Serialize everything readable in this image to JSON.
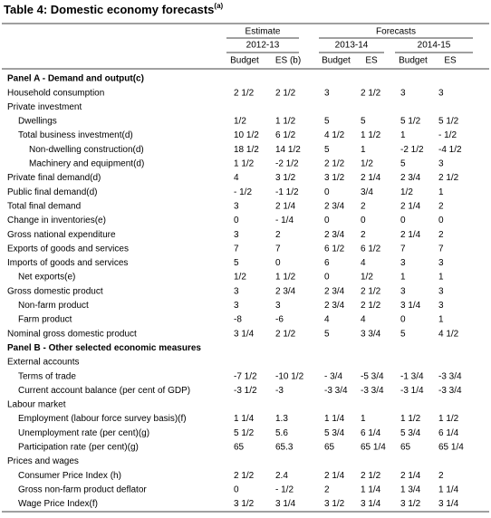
{
  "header": {
    "title": "Table 4: Domestic economy forecasts",
    "title_note": "(a)"
  },
  "column_groups": [
    "Estimate",
    "Forecasts"
  ],
  "years": [
    "2012-13",
    "2013-14",
    "2014-15"
  ],
  "columns": [
    "Budget",
    "ES (b)",
    "Budget",
    "ES",
    "Budget",
    "ES"
  ],
  "panels": [
    {
      "title": "Panel A - Demand and output(c)",
      "rows": [
        {
          "label": "Household consumption",
          "values": [
            "2 1/2",
            "2 1/2",
            "3",
            "2 1/2",
            "3",
            "3"
          ]
        },
        {
          "label": "Private investment",
          "children": [
            {
              "label": "Dwellings",
              "values": [
                "1/2",
                "1 1/2",
                "5",
                "5",
                "5 1/2",
                "5 1/2"
              ]
            },
            {
              "label": "Total business investment(d)",
              "values": [
                "10 1/2",
                "6 1/2",
                "4 1/2",
                "1 1/2",
                "1",
                "- 1/2"
              ],
              "children": [
                {
                  "label": "Non-dwelling construction(d)",
                  "values": [
                    "18 1/2",
                    "14 1/2",
                    "5",
                    "1",
                    "-2 1/2",
                    "-4 1/2"
                  ]
                },
                {
                  "label": "Machinery and equipment(d)",
                  "values": [
                    "1 1/2",
                    "-2 1/2",
                    "2 1/2",
                    "1/2",
                    "5",
                    "3"
                  ]
                }
              ]
            }
          ]
        },
        {
          "label": "Private final demand(d)",
          "values": [
            "4",
            "3 1/2",
            "3 1/2",
            "2 1/4",
            "2 3/4",
            "2 1/2"
          ]
        },
        {
          "label": "Public final demand(d)",
          "values": [
            "- 1/2",
            "-1 1/2",
            "0",
            "3/4",
            "1/2",
            "1"
          ]
        },
        {
          "label": "Total final demand",
          "values": [
            "3",
            "2 1/4",
            "2 3/4",
            "2",
            "2 1/4",
            "2"
          ]
        },
        {
          "label": "Change in inventories(e)",
          "values": [
            "0",
            "- 1/4",
            "0",
            "0",
            "0",
            "0"
          ]
        },
        {
          "label": "Gross national expenditure",
          "values": [
            "3",
            "2",
            "2 3/4",
            "2",
            "2 1/4",
            "2"
          ]
        },
        {
          "label": "Exports of goods and services",
          "values": [
            "7",
            "7",
            "6 1/2",
            "6 1/2",
            "7",
            "7"
          ]
        },
        {
          "label": "Imports of goods and services",
          "values": [
            "5",
            "0",
            "6",
            "4",
            "3",
            "3"
          ],
          "children": [
            {
              "label": "Net exports(e)",
              "values": [
                "1/2",
                "1 1/2",
                "0",
                "1/2",
                "1",
                "1"
              ]
            }
          ]
        },
        {
          "label": "Gross domestic product",
          "values": [
            "3",
            "2 3/4",
            "2 3/4",
            "2 1/2",
            "3",
            "3"
          ],
          "children": [
            {
              "label": "Non-farm product",
              "values": [
                "3",
                "3",
                "2 3/4",
                "2 1/2",
                "3 1/4",
                "3"
              ]
            },
            {
              "label": "Farm product",
              "values": [
                "-8",
                "-6",
                "4",
                "4",
                "0",
                "1"
              ]
            }
          ]
        },
        {
          "label": "Nominal gross domestic product",
          "values": [
            "3 1/4",
            "2 1/2",
            "5",
            "3 3/4",
            "5",
            "4 1/2"
          ]
        }
      ]
    },
    {
      "title": "Panel B - Other selected economic measures",
      "rows": [
        {
          "label": "External accounts",
          "children": [
            {
              "label": "Terms of trade",
              "values": [
                "-7 1/2",
                "-10 1/2",
                "- 3/4",
                "-5 3/4",
                "-1 3/4",
                "-3 3/4"
              ]
            },
            {
              "label": "Current account balance (per cent of GDP)",
              "values": [
                "-3 1/2",
                "-3",
                "-3 3/4",
                "-3 3/4",
                "-3 1/4",
                "-3 3/4"
              ]
            }
          ]
        },
        {
          "label": "Labour market",
          "children": [
            {
              "label": "Employment (labour force survey basis)(f)",
              "values": [
                "1 1/4",
                "1.3",
                "1 1/4",
                "1",
                "1 1/2",
                "1 1/2"
              ]
            },
            {
              "label": "Unemployment rate (per cent)(g)",
              "values": [
                "5 1/2",
                "5.6",
                "5 3/4",
                "6 1/4",
                "5 3/4",
                "6 1/4"
              ]
            },
            {
              "label": "Participation rate (per cent)(g)",
              "values": [
                "65",
                "65.3",
                "65",
                "65 1/4",
                "65",
                "65 1/4"
              ]
            }
          ]
        },
        {
          "label": "Prices and wages",
          "children": [
            {
              "label": "Consumer Price Index (h)",
              "values": [
                "2 1/2",
                "2.4",
                "2 1/4",
                "2 1/2",
                "2 1/4",
                "2"
              ]
            },
            {
              "label": "Gross non-farm product deflator",
              "values": [
                "0",
                "- 1/2",
                "2",
                "1 1/4",
                "1 3/4",
                "1 1/4"
              ]
            },
            {
              "label": "Wage Price Index(f)",
              "values": [
                "3 1/2",
                "3 1/4",
                "3 1/2",
                "3 1/4",
                "3 1/2",
                "3 1/4"
              ]
            }
          ]
        }
      ]
    }
  ]
}
